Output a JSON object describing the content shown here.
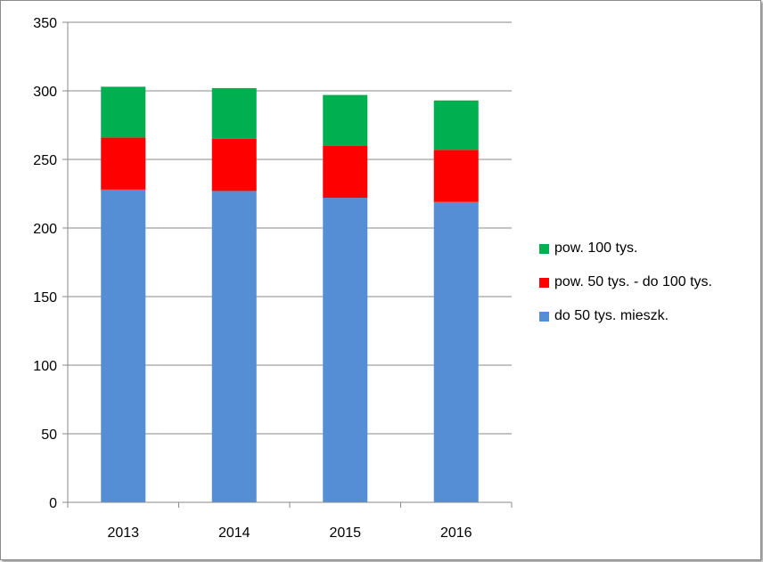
{
  "chart_data": {
    "type": "bar",
    "stacked": true,
    "categories": [
      "2013",
      "2014",
      "2015",
      "2016"
    ],
    "series": [
      {
        "name": "do 50 tys. mieszk.",
        "color": "#558ED5",
        "values": [
          228,
          227,
          222,
          219
        ]
      },
      {
        "name": "pow. 50 tys. - do 100 tys.",
        "color": "#FF0000",
        "values": [
          38,
          38,
          38,
          38
        ]
      },
      {
        "name": "pow. 100 tys.",
        "color": "#00B050",
        "values": [
          37,
          37,
          37,
          36
        ]
      }
    ],
    "ylim": [
      0,
      350
    ],
    "yticks": [
      0,
      50,
      100,
      150,
      200,
      250,
      300,
      350
    ],
    "grid": true,
    "legend_position": "right",
    "legend_order": [
      "pow. 100 tys.",
      "pow. 50 tys. - do 100 tys.",
      "do 50 tys. mieszk."
    ]
  }
}
